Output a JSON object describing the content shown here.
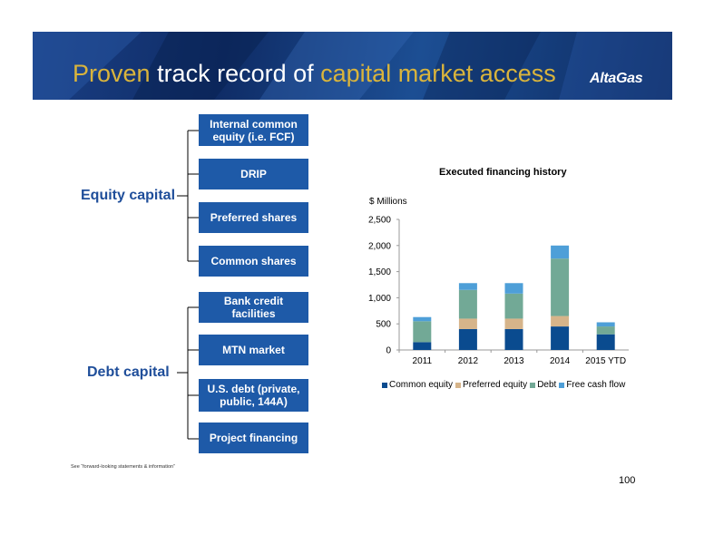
{
  "header": {
    "title_parts": [
      {
        "text": "Proven",
        "color": "gold"
      },
      {
        "text": " track record of ",
        "color": "white"
      },
      {
        "text": "capital market access",
        "color": "gold"
      }
    ],
    "logo": "AltaGas"
  },
  "equity": {
    "label": "Equity capital",
    "boxes": [
      "Internal common equity (i.e. FCF)",
      "DRIP",
      "Preferred shares",
      "Common shares"
    ]
  },
  "debt": {
    "label": "Debt capital",
    "boxes": [
      "Bank credit facilities",
      "MTN market",
      "U.S. debt (private, public, 144A)",
      "Project financing"
    ]
  },
  "chart_data": {
    "type": "bar",
    "stacked": true,
    "title": "Executed financing history",
    "ylabel": "$ Millions",
    "xlabel": "",
    "categories": [
      "2011",
      "2012",
      "2013",
      "2014",
      "2015 YTD"
    ],
    "ylim": [
      0,
      2500
    ],
    "yticks": [
      "0",
      "500",
      "1,000",
      "1,500",
      "2,000",
      "2,500"
    ],
    "ytick_values": [
      0,
      500,
      1000,
      1500,
      2000,
      2500
    ],
    "grid": false,
    "legend_position": "bottom",
    "series": [
      {
        "name": "Common equity",
        "color": "#0a4b8f",
        "values": [
          150,
          400,
          400,
          450,
          300
        ]
      },
      {
        "name": "Preferred equity",
        "color": "#d6b48a",
        "values": [
          0,
          200,
          200,
          200,
          0
        ]
      },
      {
        "name": "Debt",
        "color": "#72a996",
        "values": [
          400,
          550,
          480,
          1100,
          150
        ]
      },
      {
        "name": "Free cash flow",
        "color": "#4e9fd8",
        "values": [
          80,
          130,
          200,
          250,
          80
        ]
      }
    ]
  },
  "footnote": "See “forward-looking statements & information”",
  "page_number": "100"
}
